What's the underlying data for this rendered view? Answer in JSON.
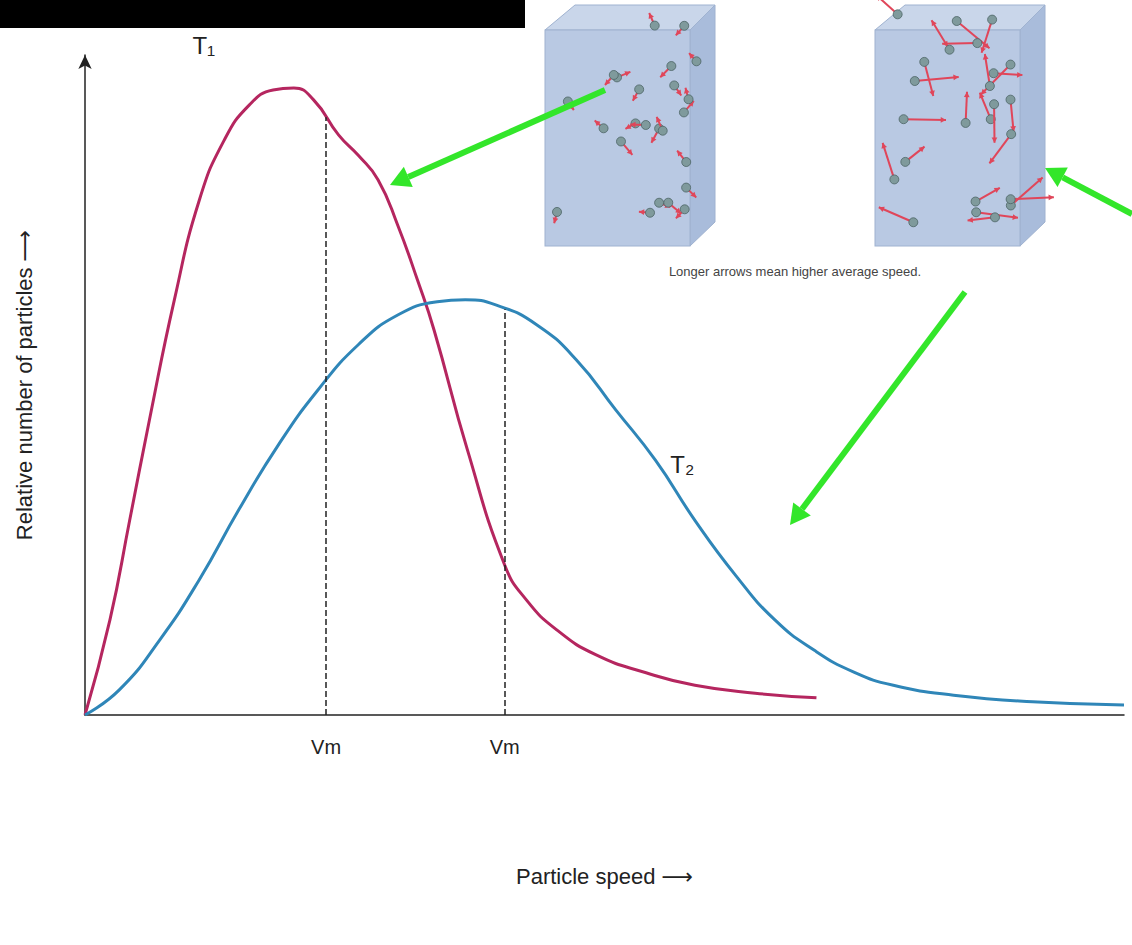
{
  "chart_data": {
    "type": "line",
    "x_label": "Particle speed ⟶",
    "y_label": "Relative number of particles ⟶",
    "annotations": [
      "Longer arrows mean higher average speed."
    ],
    "series": [
      {
        "name": "T₁",
        "color": "#b5265f",
        "x": [
          0,
          2.4,
          4.3,
          6.2,
          8.6,
          11.0,
          13.4,
          15.8,
          18.1,
          20.1,
          22.0,
          24.4,
          26.3,
          28.2,
          30.1,
          32.0,
          33.6,
          36.8,
          40.4,
          42.5,
          45.4,
          49.2,
          54.0,
          58.7,
          64.5,
          70.4
        ],
        "values": [
          0,
          14.4,
          29.5,
          44.7,
          62.9,
          78.0,
          87.1,
          92.4,
          94.7,
          95.0,
          93.2,
          87.9,
          84.8,
          81.1,
          74.2,
          65.9,
          58.3,
          40.2,
          22.7,
          17.4,
          12.9,
          9.1,
          6.4,
          4.5,
          3.3,
          2.6
        ]
      },
      {
        "name": "T₂",
        "color": "#2f86b8",
        "x": [
          0,
          3.3,
          7.2,
          11.0,
          14.8,
          18.6,
          22.4,
          26.3,
          30.1,
          33.9,
          36.6,
          39.6,
          43.5,
          47.3,
          51.1,
          54.9,
          58.7,
          62.6,
          66.4,
          70.2,
          74.0,
          77.8,
          83.6,
          91.2,
          100
        ],
        "values": [
          0,
          3.8,
          11.4,
          20.5,
          31.1,
          40.9,
          49.2,
          56.1,
          60.6,
          62.6,
          62.9,
          62.1,
          59.1,
          53.8,
          46.2,
          38.6,
          29.5,
          21.2,
          14.4,
          9.8,
          6.5,
          4.5,
          3.0,
          2.0,
          1.5
        ]
      }
    ],
    "xlim": [
      0,
      100
    ],
    "ylim": [
      0,
      100
    ],
    "xticks": [
      {
        "value": 23.2,
        "label": "Vm"
      },
      {
        "value": 40.4,
        "label": "Vm"
      }
    ],
    "yticks": [],
    "tick_labels": "x",
    "grid": false,
    "marker": "none",
    "line_style": "solid"
  }
}
